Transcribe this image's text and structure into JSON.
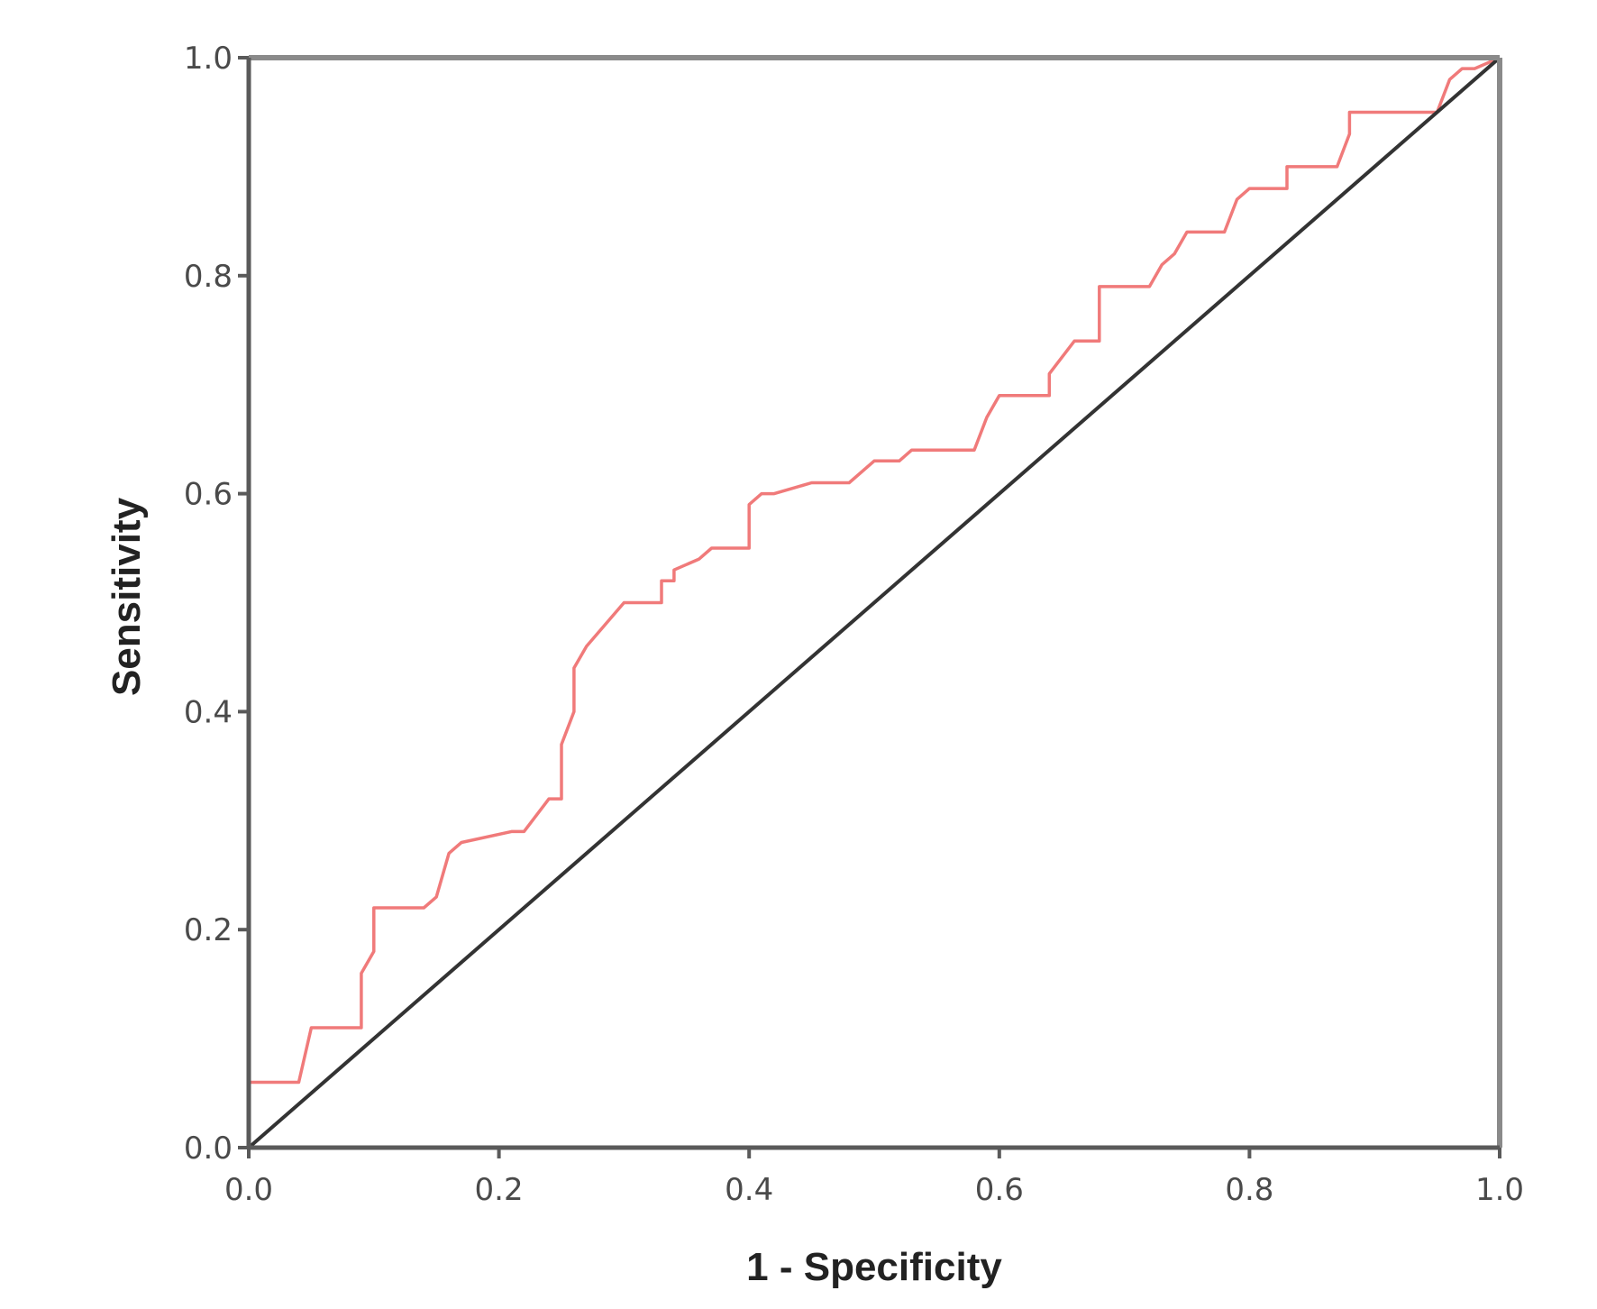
{
  "chart_data": {
    "type": "line",
    "title": "",
    "xlabel": "1 - Specificity",
    "ylabel": "Sensitivity",
    "xlim": [
      0.0,
      1.0
    ],
    "ylim": [
      0.0,
      1.0
    ],
    "grid": false,
    "legend": "none",
    "x_ticks": [
      "0.0",
      "0.2",
      "0.4",
      "0.6",
      "0.8",
      "1.0"
    ],
    "y_ticks": [
      "0.0",
      "0.2",
      "0.4",
      "0.6",
      "0.8",
      "1.0"
    ],
    "series": [
      {
        "color": "#f07a7a",
        "x": [
          0.0,
          0.0,
          0.04,
          0.05,
          0.09,
          0.09,
          0.1,
          0.1,
          0.14,
          0.15,
          0.16,
          0.17,
          0.21,
          0.22,
          0.24,
          0.25,
          0.25,
          0.26,
          0.26,
          0.27,
          0.3,
          0.3,
          0.33,
          0.33,
          0.34,
          0.34,
          0.36,
          0.37,
          0.38,
          0.4,
          0.4,
          0.41,
          0.42,
          0.45,
          0.48,
          0.5,
          0.52,
          0.53,
          0.53,
          0.58,
          0.59,
          0.6,
          0.64,
          0.64,
          0.66,
          0.66,
          0.68,
          0.68,
          0.72,
          0.73,
          0.74,
          0.75,
          0.76,
          0.78,
          0.79,
          0.8,
          0.83,
          0.83,
          0.87,
          0.88,
          0.88,
          0.95,
          0.96,
          0.97,
          0.98,
          1.0
        ],
        "y": [
          0.0,
          0.06,
          0.06,
          0.11,
          0.11,
          0.16,
          0.18,
          0.22,
          0.22,
          0.23,
          0.27,
          0.28,
          0.29,
          0.29,
          0.32,
          0.32,
          0.37,
          0.4,
          0.44,
          0.46,
          0.5,
          0.5,
          0.5,
          0.52,
          0.52,
          0.53,
          0.54,
          0.55,
          0.55,
          0.55,
          0.59,
          0.6,
          0.6,
          0.61,
          0.61,
          0.63,
          0.63,
          0.64,
          0.64,
          0.64,
          0.67,
          0.69,
          0.69,
          0.71,
          0.74,
          0.74,
          0.74,
          0.79,
          0.79,
          0.81,
          0.82,
          0.84,
          0.84,
          0.84,
          0.87,
          0.88,
          0.88,
          0.9,
          0.9,
          0.93,
          0.95,
          0.95,
          0.98,
          0.99,
          0.99,
          1.0
        ]
      },
      {
        "color": "#333333",
        "x": [
          0.0,
          1.0
        ],
        "y": [
          0.0,
          1.0
        ]
      }
    ]
  }
}
